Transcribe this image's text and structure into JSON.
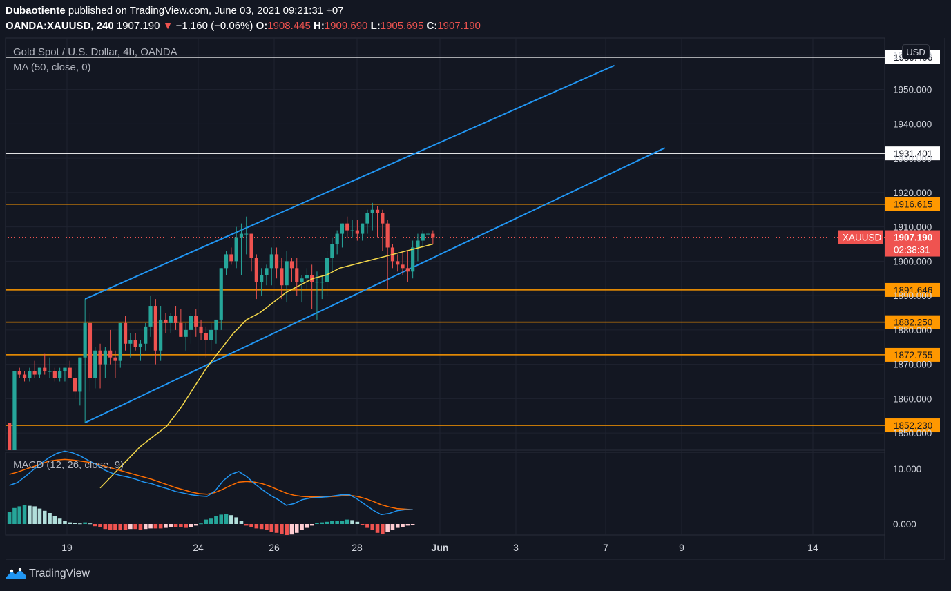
{
  "header": {
    "author": "Dubaotiente",
    "published": "published on TradingView.com, June 03, 2021 09:21:31 +07",
    "symbol": "OANDA:XAUUSD, 240",
    "last": "1907.190",
    "change": "−1.160 (−0.06%)",
    "o_label": "O:",
    "o": "1908.445",
    "h_label": "H:",
    "h": "1909.690",
    "l_label": "L:",
    "l": "1905.695",
    "c_label": "C:",
    "c": "1907.190"
  },
  "legend": {
    "title": "Gold Spot / U.S. Dollar, 4h, OANDA",
    "ma": "MA (50, close, 0)",
    "macd": "MACD (12, 26, close, 9)"
  },
  "currency_button": "USD",
  "footer": {
    "brand": "TradingView"
  },
  "colors": {
    "background": "#131722",
    "up": "#26a69a",
    "down": "#ef5350",
    "channel": "#2196f3",
    "level": "#ff9800",
    "ma": "#f5d94a",
    "macd": "#2196f3",
    "signal": "#ff6d00"
  },
  "chart_data": [
    {
      "type": "candlestick",
      "title": "Gold Spot / U.S. Dollar, 4h, OANDA",
      "ylim": [
        1845,
        1965
      ],
      "y_ticks": [
        "1850.000",
        "1860.000",
        "1870.000",
        "1880.000",
        "1890.000",
        "1900.000",
        "1910.000",
        "1920.000",
        "1930.000",
        "1940.000",
        "1950.000",
        "1960.000"
      ],
      "x_ticks": [
        "19",
        "24",
        "26",
        "28",
        "Jun",
        "3",
        "7",
        "9",
        "14"
      ],
      "candles": [
        [
          1853,
          1853,
          1845,
          1845
        ],
        [
          1845,
          1868,
          1845,
          1868
        ],
        [
          1868,
          1869,
          1866,
          1867
        ],
        [
          1867,
          1868,
          1865,
          1866
        ],
        [
          1866,
          1869,
          1865,
          1868
        ],
        [
          1868,
          1871,
          1866,
          1867
        ],
        [
          1867,
          1869,
          1866,
          1869
        ],
        [
          1869,
          1873,
          1867,
          1868
        ],
        [
          1868,
          1872,
          1866,
          1868
        ],
        [
          1868,
          1869,
          1865,
          1866
        ],
        [
          1866,
          1869,
          1865,
          1868
        ],
        [
          1868,
          1869,
          1865,
          1869
        ],
        [
          1869,
          1871,
          1866,
          1866
        ],
        [
          1866,
          1869,
          1860,
          1862
        ],
        [
          1862,
          1872,
          1858,
          1872
        ],
        [
          1872,
          1889,
          1853,
          1882
        ],
        [
          1882,
          1885,
          1862,
          1866
        ],
        [
          1866,
          1875,
          1863,
          1874
        ],
        [
          1874,
          1876,
          1863,
          1870
        ],
        [
          1870,
          1875,
          1866,
          1874
        ],
        [
          1874,
          1880,
          1870,
          1872
        ],
        [
          1872,
          1874,
          1866,
          1871
        ],
        [
          1871,
          1882,
          1869,
          1882
        ],
        [
          1882,
          1884,
          1874,
          1876
        ],
        [
          1876,
          1879,
          1872,
          1877
        ],
        [
          1877,
          1879,
          1874,
          1875
        ],
        [
          1875,
          1877,
          1871,
          1876
        ],
        [
          1876,
          1882,
          1874,
          1881
        ],
        [
          1881,
          1890,
          1878,
          1887
        ],
        [
          1887,
          1889,
          1870,
          1874
        ],
        [
          1874,
          1887,
          1871,
          1883
        ],
        [
          1883,
          1885,
          1879,
          1882
        ],
        [
          1882,
          1885,
          1879,
          1884
        ],
        [
          1884,
          1887,
          1880,
          1882
        ],
        [
          1882,
          1886,
          1878,
          1878
        ],
        [
          1878,
          1882,
          1874,
          1880
        ],
        [
          1880,
          1885,
          1876,
          1884
        ],
        [
          1884,
          1886,
          1878,
          1881
        ],
        [
          1881,
          1883,
          1877,
          1879
        ],
        [
          1879,
          1881,
          1872,
          1877
        ],
        [
          1877,
          1882,
          1874,
          1880
        ],
        [
          1880,
          1883,
          1876,
          1883
        ],
        [
          1883,
          1898,
          1880,
          1898
        ],
        [
          1898,
          1903,
          1896,
          1902
        ],
        [
          1902,
          1904,
          1899,
          1900
        ],
        [
          1900,
          1910,
          1898,
          1907
        ],
        [
          1907,
          1911,
          1896,
          1908
        ],
        [
          1908,
          1913,
          1902,
          1908
        ],
        [
          1908,
          1908,
          1897,
          1901
        ],
        [
          1901,
          1902,
          1889,
          1894
        ],
        [
          1894,
          1898,
          1890,
          1896
        ],
        [
          1896,
          1899,
          1893,
          1898
        ],
        [
          1898,
          1904,
          1893,
          1902
        ],
        [
          1902,
          1904,
          1895,
          1898
        ],
        [
          1898,
          1901,
          1889,
          1893
        ],
        [
          1893,
          1903,
          1888,
          1900
        ],
        [
          1900,
          1901,
          1894,
          1898
        ],
        [
          1898,
          1901,
          1890,
          1894
        ],
        [
          1894,
          1896,
          1888,
          1895
        ],
        [
          1895,
          1898,
          1892,
          1896
        ],
        [
          1896,
          1899,
          1886,
          1894
        ],
        [
          1894,
          1897,
          1883,
          1894
        ],
        [
          1894,
          1896,
          1889,
          1894
        ],
        [
          1894,
          1903,
          1890,
          1901
        ],
        [
          1901,
          1907,
          1897,
          1905
        ],
        [
          1905,
          1909,
          1902,
          1908
        ],
        [
          1908,
          1911,
          1904,
          1911
        ],
        [
          1911,
          1913,
          1907,
          1909
        ],
        [
          1909,
          1912,
          1907,
          1909
        ],
        [
          1909,
          1912,
          1906,
          1908
        ],
        [
          1908,
          1911,
          1906,
          1911
        ],
        [
          1911,
          1915,
          1908,
          1914
        ],
        [
          1914,
          1917,
          1909,
          1915
        ],
        [
          1915,
          1916,
          1907,
          1914
        ],
        [
          1914,
          1915,
          1903,
          1911
        ],
        [
          1911,
          1912,
          1892,
          1904
        ],
        [
          1904,
          1905,
          1898,
          1900
        ],
        [
          1900,
          1902,
          1897,
          1899
        ],
        [
          1899,
          1903,
          1896,
          1898
        ],
        [
          1898,
          1903,
          1894,
          1897
        ],
        [
          1897,
          1906,
          1895,
          1904
        ],
        [
          1904,
          1908,
          1900,
          1906
        ],
        [
          1906,
          1909,
          1904,
          1908
        ],
        [
          1908,
          1909,
          1906,
          1908
        ],
        [
          1908,
          1909,
          1905,
          1907
        ]
      ],
      "ma50": [
        1834,
        1838,
        1842,
        1846,
        1849,
        1852,
        1857,
        1863,
        1869,
        1874,
        1879,
        1883,
        1885,
        1888,
        1891,
        1893,
        1895,
        1896,
        1898,
        1899,
        1900,
        1901,
        1902,
        1903,
        1904,
        1905
      ],
      "channel_lines": [
        {
          "from": [
            15,
            1889
          ],
          "to": [
            120,
            1957
          ]
        },
        {
          "from": [
            15,
            1853
          ],
          "to": [
            130,
            1933
          ]
        }
      ],
      "horizontal_levels": [
        {
          "value": "1959.406",
          "color": "#ffffff"
        },
        {
          "value": "1931.401",
          "color": "#ffffff"
        },
        {
          "value": "1916.615",
          "color": "#ff9800"
        },
        {
          "value": "1891.646",
          "color": "#ff9800"
        },
        {
          "value": "1882.250",
          "color": "#ff9800"
        },
        {
          "value": "1872.755",
          "color": "#ff9800"
        },
        {
          "value": "1852.230",
          "color": "#ff9800"
        }
      ],
      "price_label": {
        "symbol": "XAUUSD",
        "value": "1907.190",
        "countdown": "02:38:31"
      }
    },
    {
      "type": "bar",
      "title": "MACD (12, 26, close, 9)",
      "ylim": [
        -2,
        13
      ],
      "y_ticks": [
        "0.000",
        "10.000"
      ],
      "macd": [
        7,
        7.5,
        8.6,
        9.8,
        11,
        12,
        12.8,
        13.2,
        12.9,
        12.3,
        11.5,
        10.8,
        9.8,
        9.2,
        8.8,
        8.5,
        8.1,
        7.6,
        7.3,
        6.8,
        6.4,
        5.9,
        5.6,
        5.3,
        5.1,
        5.0,
        6.0,
        7.8,
        9.0,
        9.5,
        8.6,
        7.3,
        6.2,
        5.2,
        4.4,
        3.4,
        3.7,
        4.4,
        4.7,
        4.8,
        4.9,
        5.1,
        5.3,
        5.3,
        4.5,
        3.5,
        2.5,
        1.7,
        1.9,
        2.4,
        2.6,
        2.6
      ],
      "signal": [
        9,
        9.4,
        9.9,
        10.4,
        10.9,
        11.4,
        11.6,
        11.7,
        11.6,
        11.4,
        11.2,
        10.9,
        10.5,
        10.1,
        9.7,
        9.3,
        8.9,
        8.5,
        8.1,
        7.6,
        7.1,
        6.6,
        6.2,
        5.8,
        5.5,
        5.4,
        5.7,
        6.3,
        7.0,
        7.6,
        7.7,
        7.6,
        7.3,
        6.8,
        6.2,
        5.6,
        5.2,
        5.0,
        4.9,
        4.9,
        4.9,
        5.0,
        5.1,
        5.2,
        5.0,
        4.6,
        4.1,
        3.5,
        3.1,
        2.8,
        2.7,
        2.6
      ],
      "histogram": [
        2.2,
        2.9,
        3.2,
        3.4,
        3.3,
        3.2,
        2.8,
        2.4,
        2.0,
        1.5,
        1.1,
        0.5,
        0.3,
        0.2,
        0.1,
        0.3,
        0.1,
        -0.4,
        -0.6,
        -0.9,
        -1.0,
        -1.0,
        -1.0,
        -1.1,
        -0.9,
        -0.9,
        -1.0,
        -0.9,
        -0.8,
        -0.8,
        -0.8,
        -0.7,
        -0.5,
        -0.5,
        -0.5,
        -0.7,
        -0.6,
        -0.3,
        0.1,
        0.8,
        1.1,
        1.4,
        1.7,
        1.8,
        1.6,
        1.2,
        0.5,
        -0.3,
        -0.6,
        -0.8,
        -0.9,
        -1.1,
        -1.4,
        -1.6,
        -1.8,
        -2.0,
        -1.9,
        -1.6,
        -1.1,
        -0.7,
        -0.3,
        0.2,
        0.3,
        0.4,
        0.5,
        0.5,
        0.6,
        0.8,
        0.7,
        0.4,
        -0.2,
        -0.7,
        -1.1,
        -1.6,
        -1.8,
        -1.5,
        -1.0,
        -0.7,
        -0.5,
        -0.3,
        -0.1
      ]
    }
  ]
}
